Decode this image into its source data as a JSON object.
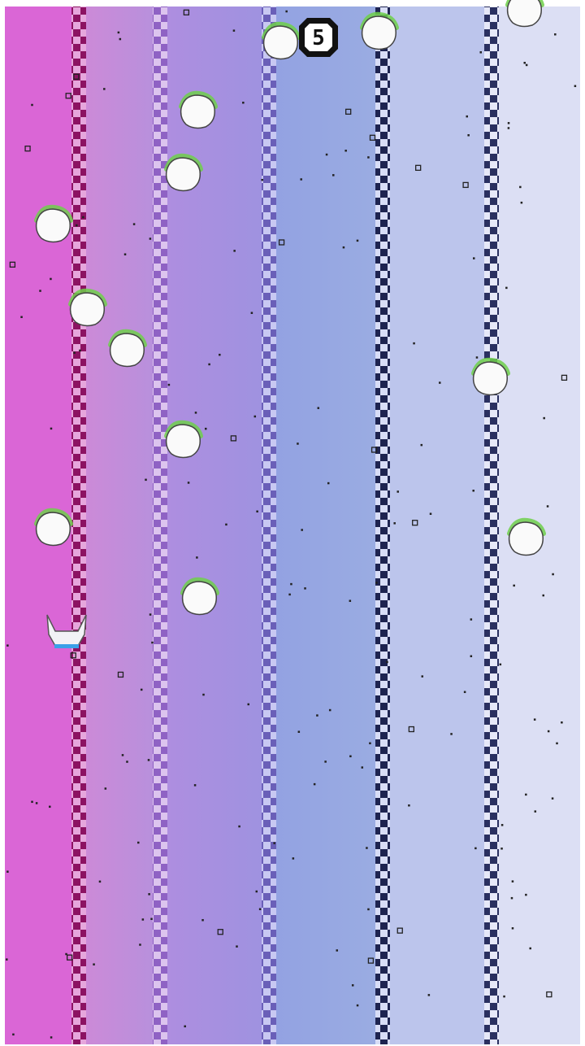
{
  "hud": {
    "score": 5
  }
}
